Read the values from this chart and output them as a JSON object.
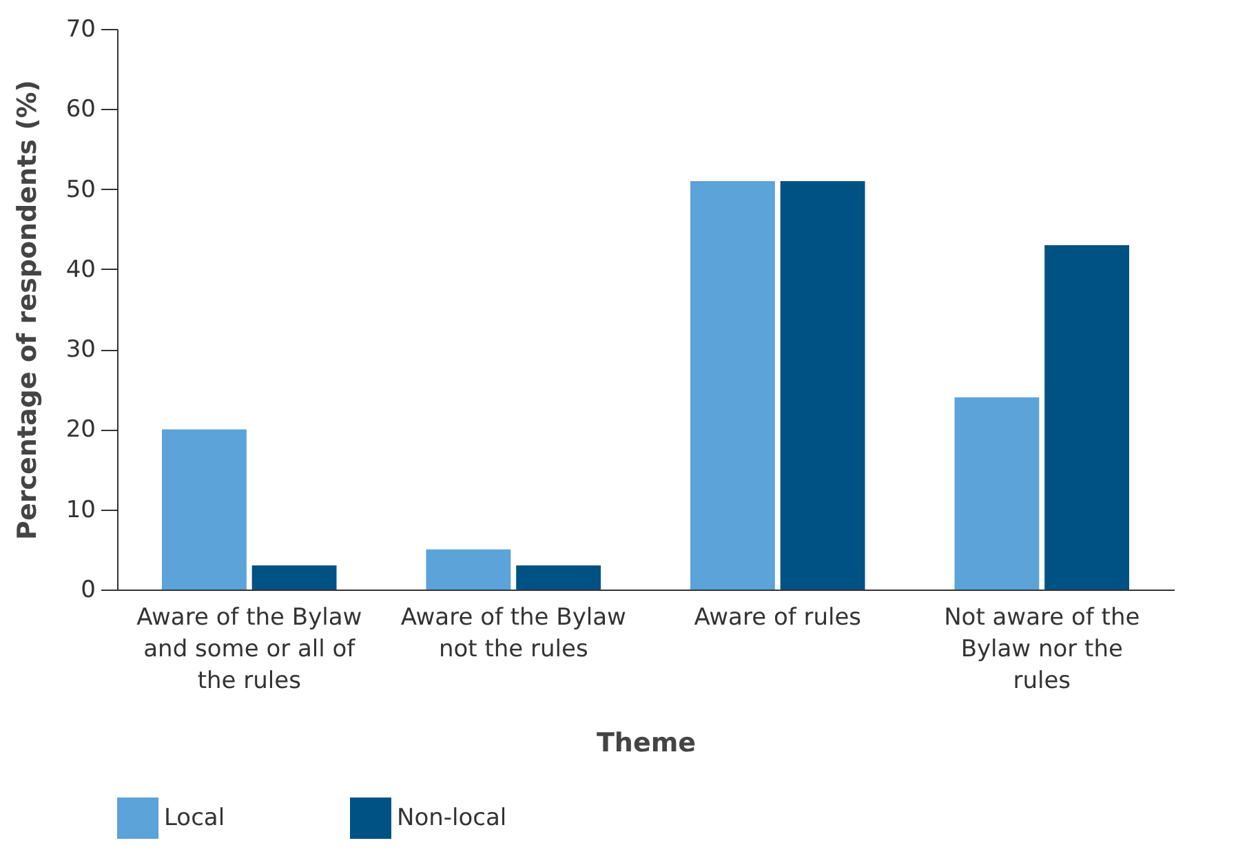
{
  "chart_data": {
    "type": "bar",
    "xlabel": "Theme",
    "ylabel": "Percentage of respondents (%)",
    "categories": [
      "Aware of the Bylaw and some or all of the rules",
      "Aware of the Bylaw not the rules",
      "Aware of rules",
      "Not aware of the Bylaw nor the rules"
    ],
    "series": [
      {
        "name": "Local",
        "color": "#5ba3d9",
        "values": [
          20,
          5,
          51,
          24
        ]
      },
      {
        "name": "Non-local",
        "color": "#005284",
        "values": [
          3,
          3,
          51,
          43
        ]
      }
    ],
    "ylim": [
      0,
      70
    ],
    "yticks": [
      0,
      10,
      20,
      30,
      40,
      50,
      60,
      70
    ],
    "grid": false,
    "legend": "bottom"
  }
}
